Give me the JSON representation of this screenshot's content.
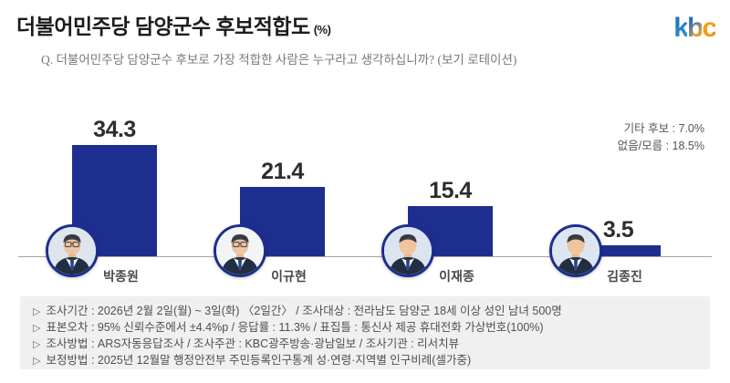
{
  "header": {
    "title": "더불어민주당 담양군수 후보적합도",
    "title_unit": "(%)",
    "logo": {
      "name": "kbc",
      "letters": [
        "k",
        "b",
        "c"
      ]
    }
  },
  "question": "Q. 더불어민주당 담양군수 후보로 가장 적합한 사람은 누구라고 생각하십니까? (보기 로테이션)",
  "side_notes": [
    {
      "label": "기타 후보",
      "value": "7.0%",
      "text": "기타 후보 : 7.0%"
    },
    {
      "label": "없음/모름",
      "value": "18.5%",
      "text": "없음/모름 : 18.5%"
    }
  ],
  "chart_data": {
    "type": "bar",
    "title": "더불어민주당 담양군수 후보적합도 (%)",
    "unit": "%",
    "categories": [
      "박종원",
      "이규현",
      "이재종",
      "김종진"
    ],
    "values": [
      34.3,
      21.4,
      15.4,
      3.5
    ],
    "others": {
      "기타 후보": 7.0,
      "없음/모름": 18.5
    },
    "bar_color": "#1d2e8f",
    "value_label_color": "#2d2d2d",
    "ylim": [
      0,
      40
    ],
    "grid": false,
    "legend": "none",
    "data_labels": true
  },
  "footnotes": {
    "bullet": "▷",
    "lines": [
      "조사기간 : 2026년 2월 2일(월) ~ 3일(화) 〈2일간〉 / 조사대상 : 전라남도 담양군 18세 이상 성인 남녀 500명",
      "표본오차 : 95% 신뢰수준에서 ±4.4%p / 응답률 : 11.3% / 표집틀 : 통신사 제공 휴대전화 가상번호(100%)",
      "조사방법 : ARS자동응답조사 / 조사주관 : KBC광주방송·광남일보 / 조사기관 : 리서치뷰",
      "보정방법 : 2025년 12월말 행정안전부 주민등록인구통계 성·연령·지역별 인구비례(셀가중)"
    ]
  }
}
